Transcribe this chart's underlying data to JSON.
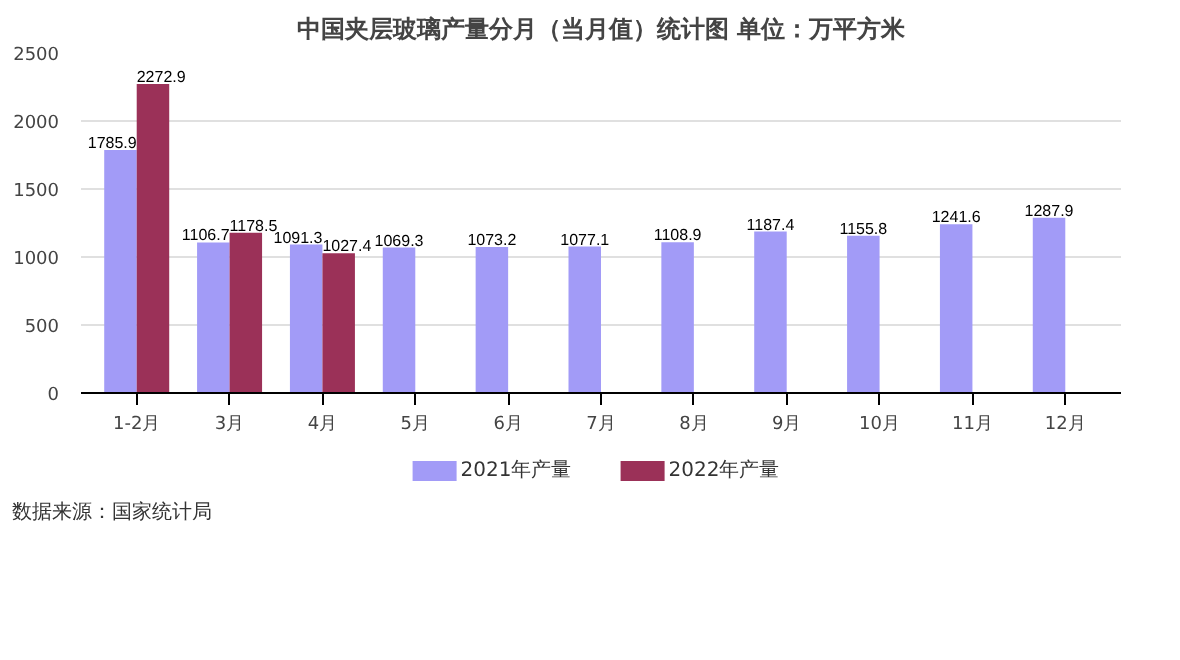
{
  "chart_data": {
    "type": "bar",
    "title": "中国夹层玻璃产量分月（当月值）统计图 单位：万平方米",
    "categories": [
      "1-2月",
      "3月",
      "4月",
      "5月",
      "6月",
      "7月",
      "8月",
      "9月",
      "10月",
      "11月",
      "12月"
    ],
    "series": [
      {
        "name": "2021年产量",
        "color": "#a29bf7",
        "values": [
          1785.9,
          1106.7,
          1091.3,
          1069.3,
          1073.2,
          1077.1,
          1108.9,
          1187.4,
          1155.8,
          1241.6,
          1287.9
        ]
      },
      {
        "name": "2022年产量",
        "color": "#9b3158",
        "values": [
          2272.9,
          1178.5,
          1027.4,
          null,
          null,
          null,
          null,
          null,
          null,
          null,
          null
        ]
      }
    ],
    "ylim": [
      0,
      2500
    ],
    "yticks": [
      0,
      500,
      1000,
      1500,
      2000,
      2500
    ],
    "grid": "y",
    "legend": "bottom",
    "data_labels": true,
    "annotations": [
      "数据来源：国家统计局"
    ]
  }
}
